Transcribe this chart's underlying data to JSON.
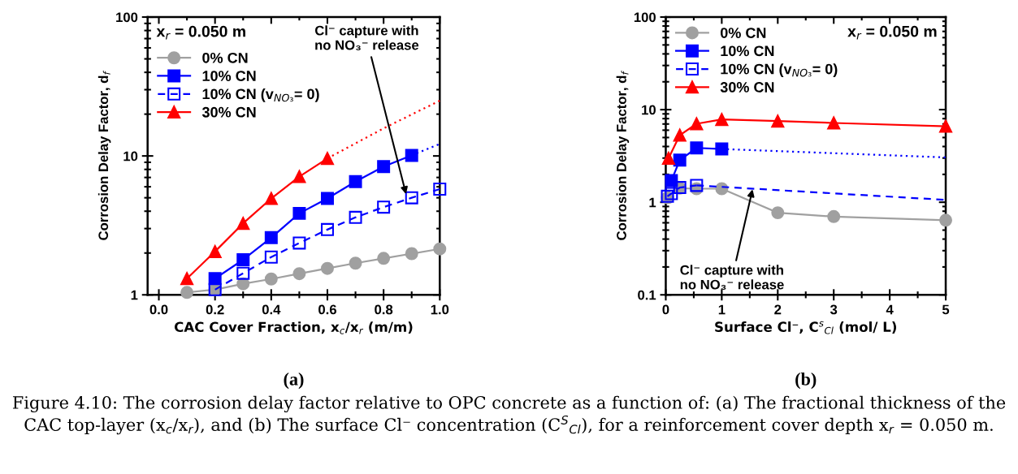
{
  "chart_data": [
    {
      "type": "line",
      "ylabel": "Corrosion Delay Factor, d$_{f}$",
      "xlabel": "CAC Cover Fraction, x$_{c}$/x$_{r}$ (m/m)",
      "xlim": [
        -0.04,
        1.0
      ],
      "xticks": [
        {
          "value": 0,
          "label": "0.0"
        },
        {
          "value": 0.2,
          "label": "0.2"
        },
        {
          "value": 0.4,
          "label": "0.4"
        },
        {
          "value": 0.6,
          "label": "0.6"
        },
        {
          "value": 0.8,
          "label": "0.8"
        },
        {
          "value": 1.0,
          "label": "1.0"
        }
      ],
      "ylim": [
        1,
        100
      ],
      "yticks": [
        1,
        10,
        100
      ],
      "log": "y",
      "grid": false,
      "legend": "top left",
      "series": [
        {
          "name": "0% CN",
          "color": "#a0a0a0",
          "marker": "circle",
          "line_style": "solid",
          "x": [
            0.1,
            0.2,
            0.3,
            0.4,
            0.5,
            0.6,
            0.7,
            0.8,
            0.9,
            1.0
          ],
          "values": [
            1.04,
            1.09,
            1.2,
            1.3,
            1.42,
            1.55,
            1.69,
            1.83,
            1.98,
            2.14
          ]
        },
        {
          "name": "10% CN",
          "color": "#0000ff",
          "marker": "square",
          "line_style": "solid",
          "x": [
            0.2,
            0.3,
            0.4,
            0.5,
            0.6,
            0.7,
            0.8,
            0.9
          ],
          "values": [
            1.31,
            1.79,
            2.58,
            3.86,
            4.94,
            6.54,
            8.38,
            10.1
          ]
        },
        {
          "color": "#0000ff",
          "marker": "none",
          "line_style": "dotted",
          "x": [
            0.9,
            1.0
          ],
          "values": [
            10.1,
            12.2
          ]
        },
        {
          "name": "10% CN (v$_{NO₃}$= 0)",
          "color": "#0000ff",
          "marker": "square",
          "line_style": "dashed",
          "x": [
            0.2,
            0.3,
            0.4,
            0.5,
            0.6,
            0.7,
            0.8,
            0.9,
            1.0
          ],
          "values": [
            1.09,
            1.43,
            1.87,
            2.36,
            2.95,
            3.61,
            4.28,
            5.0,
            5.77
          ]
        },
        {
          "name": "30% CN",
          "color": "#ff0000",
          "marker": "triangle",
          "line_style": "solid",
          "x": [
            0.1,
            0.2,
            0.3,
            0.4,
            0.5,
            0.6
          ],
          "values": [
            1.31,
            2.05,
            3.27,
            4.94,
            7.1,
            9.6
          ]
        },
        {
          "color": "#ff0000",
          "marker": "none",
          "line_style": "dotted",
          "x": [
            0.6,
            0.8,
            1.0
          ],
          "values": [
            9.6,
            15.8,
            25.0
          ]
        }
      ],
      "annotations": [
        {
          "text": "Cl⁻ capture with\nno NO₃⁻ release",
          "x": 0.88,
          "y": 5.3
        },
        "x$_{r}$ = 0.050 m",
        "(a)"
      ]
    },
    {
      "type": "line",
      "ylabel": "Corrosion Delay Factor, d$_{f}$",
      "xlabel": "Surface Cl⁻, C$^{s}$$_{Cl}$ (mol/ L)",
      "xlim": [
        0,
        5
      ],
      "xticks": [
        0,
        1,
        2,
        3,
        4,
        5
      ],
      "ylim": [
        0.1,
        100
      ],
      "yticks": [
        0.1,
        1,
        10,
        100
      ],
      "log": "y",
      "grid": false,
      "legend": "top left",
      "series": [
        {
          "name": "0% CN",
          "color": "#a0a0a0",
          "marker": "circle",
          "line_style": "solid",
          "x": [
            0.03,
            0.25,
            0.55,
            1,
            2,
            3,
            5
          ],
          "values": [
            1.12,
            1.42,
            1.4,
            1.4,
            0.77,
            0.7,
            0.64
          ]
        },
        {
          "name": "10% CN",
          "color": "#0000ff",
          "marker": "square",
          "line_style": "solid",
          "x": [
            0.1,
            0.25,
            0.55,
            1
          ],
          "values": [
            1.71,
            2.85,
            3.86,
            3.76
          ]
        },
        {
          "color": "#0000ff",
          "marker": "none",
          "line_style": "dotted",
          "x": [
            1,
            5
          ],
          "values": [
            3.76,
            3.05
          ]
        },
        {
          "name": "10% CN (v$_{NO₃}$= 0)",
          "color": "#0000ff",
          "marker": "square",
          "line_style": "dashed",
          "x": [
            0.03,
            0.1,
            0.25,
            0.55
          ],
          "values": [
            1.16,
            1.24,
            1.44,
            1.52
          ]
        },
        {
          "color": "#0000ff",
          "marker": "none",
          "line_style": "dashed",
          "x": [
            0.55,
            5
          ],
          "values": [
            1.52,
            1.06
          ]
        },
        {
          "name": "30% CN",
          "color": "#ff0000",
          "marker": "triangle",
          "line_style": "solid",
          "x": [
            0.05,
            0.25,
            0.55,
            1,
            2,
            3,
            5
          ],
          "values": [
            2.99,
            5.3,
            7.04,
            7.84,
            7.53,
            7.18,
            6.62
          ]
        }
      ],
      "annotations": [
        {
          "text": "Cl⁻ capture with\nno NO₃⁻ release",
          "x": 1.55,
          "y": 1.38
        },
        "x$_{r}$ = 0.050 m",
        "(b)",
        "Figure 4.10: The corrosion delay factor relative to OPC concrete as a function of: (a) The fractional thickness of the CAC top-layer (x$_{c}$/x$_{r}$), and (b) The surface Cl⁻ concentration (C$^{S}$$_{Cl}$), for a reinforcement cover depth x$_{r}$ = 0.050 m."
      ]
    }
  ]
}
